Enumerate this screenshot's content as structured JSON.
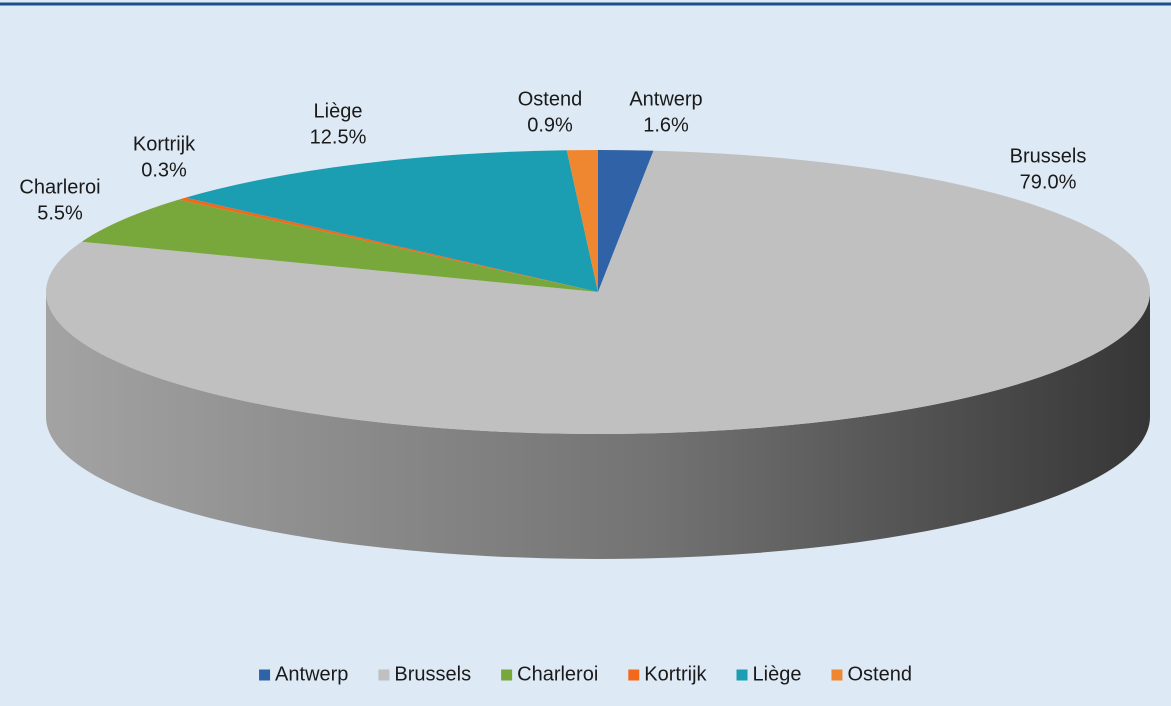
{
  "chart_data": {
    "type": "pie",
    "categories": [
      "Antwerp",
      "Brussels",
      "Charleroi",
      "Kortrijk",
      "Liège",
      "Ostend"
    ],
    "values": [
      1.6,
      79.0,
      5.5,
      0.3,
      12.5,
      0.9
    ],
    "value_labels": [
      "1.6%",
      "79.0%",
      "5.5%",
      "0.3%",
      "12.5%",
      "0.9%"
    ],
    "colors": [
      "#2f62a6",
      "#c0c0c0",
      "#78a73b",
      "#f2691c",
      "#1b9db2",
      "#ef8630"
    ],
    "legend": "bottom"
  }
}
